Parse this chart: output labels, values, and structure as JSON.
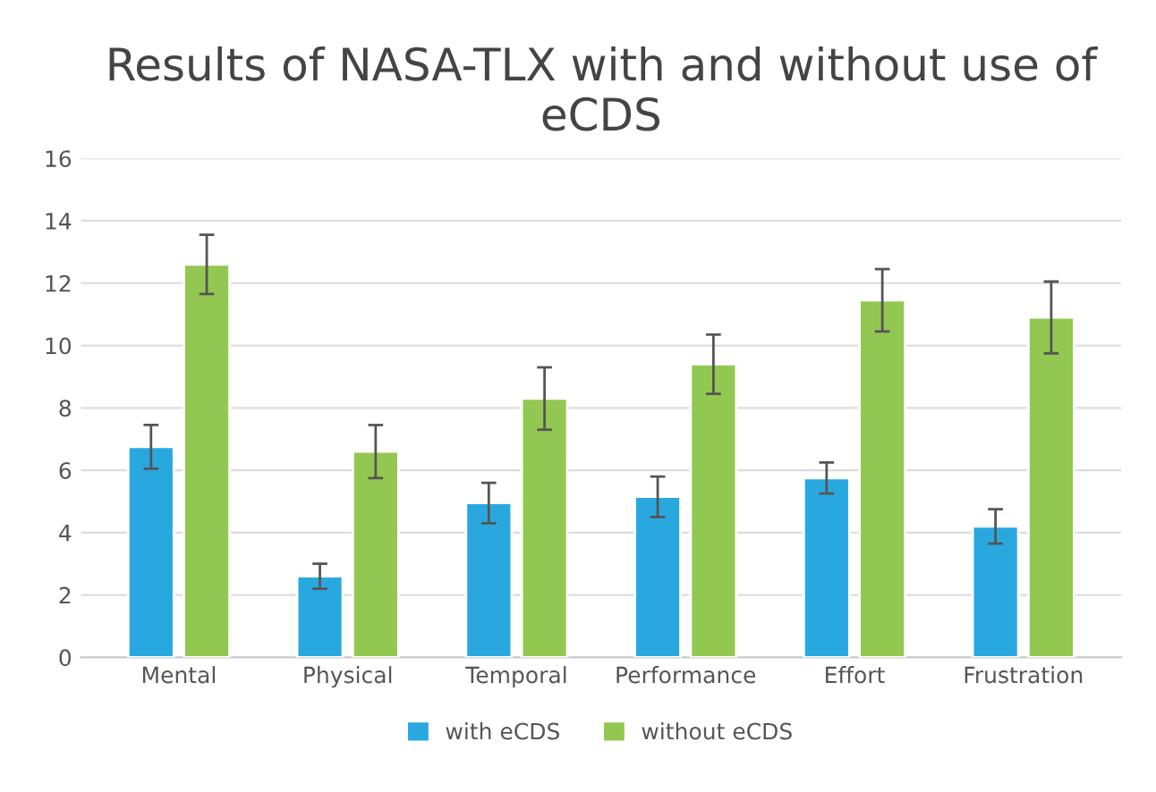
{
  "chart_data": {
    "type": "bar",
    "title": "Results of NASA-TLX with and without use of eCDS",
    "categories": [
      "Mental",
      "Physical",
      "Temporal",
      "Performance",
      "Effort",
      "Frustration"
    ],
    "series": [
      {
        "name": "with eCDS",
        "color": "#29a8e0",
        "values": [
          6.75,
          2.6,
          4.95,
          5.15,
          5.75,
          4.2
        ],
        "errors": [
          0.7,
          0.4,
          0.65,
          0.65,
          0.5,
          0.55
        ]
      },
      {
        "name": "without eCDS",
        "color": "#92c851",
        "values": [
          12.6,
          6.6,
          8.3,
          9.4,
          11.45,
          10.9
        ],
        "errors": [
          0.95,
          0.85,
          1.0,
          0.95,
          1.0,
          1.15
        ]
      }
    ],
    "ylim": [
      0,
      16
    ],
    "yticks": [
      0,
      2,
      4,
      6,
      8,
      10,
      12,
      14,
      16
    ],
    "grid": "y",
    "legend": "bottom"
  }
}
